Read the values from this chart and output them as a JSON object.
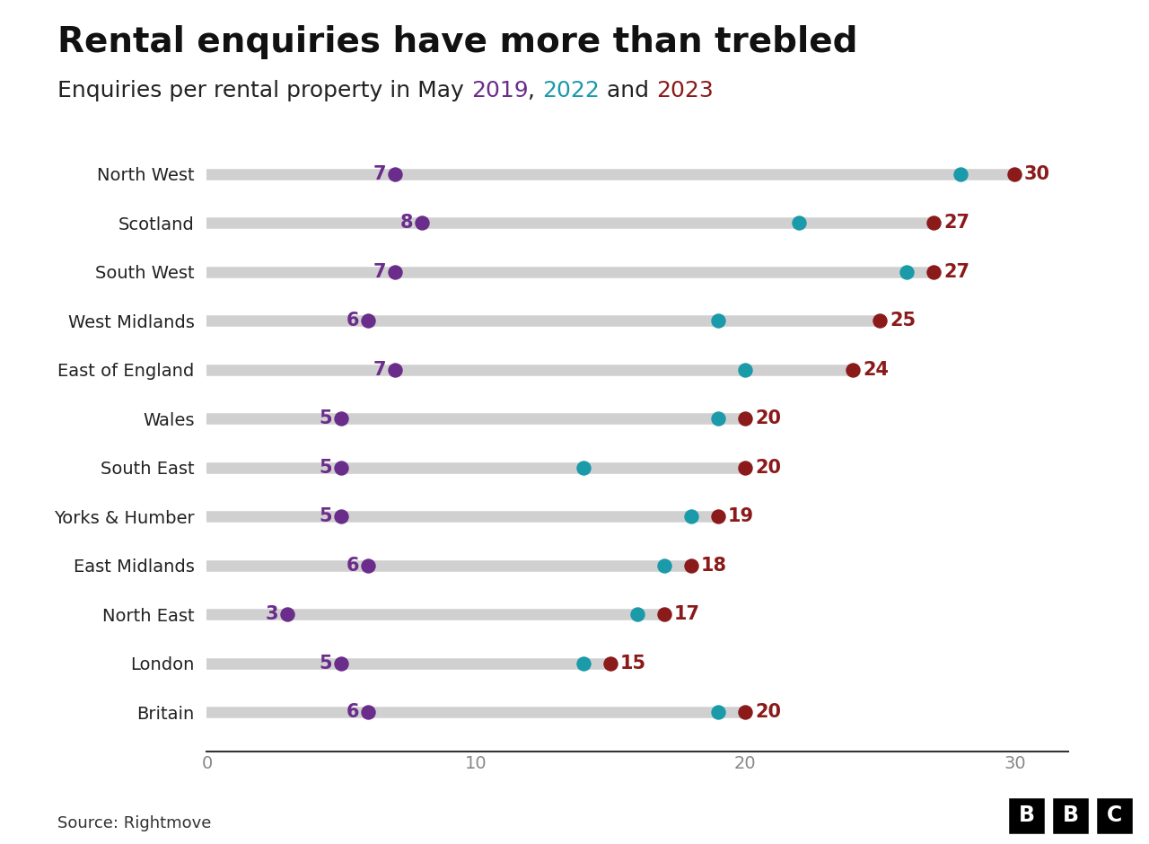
{
  "title": "Rental enquiries have more than trebled",
  "subtitle_parts": [
    {
      "text": "Enquiries per rental property in May ",
      "color": "#222222"
    },
    {
      "text": "2019",
      "color": "#6B2D8B"
    },
    {
      "text": ", ",
      "color": "#222222"
    },
    {
      "text": "2022",
      "color": "#1B9AAA"
    },
    {
      "text": " and ",
      "color": "#222222"
    },
    {
      "text": "2023",
      "color": "#8B1A1A"
    }
  ],
  "regions": [
    "North West",
    "Scotland",
    "South West",
    "West Midlands",
    "East of England",
    "Wales",
    "South East",
    "Yorks & Humber",
    "East Midlands",
    "North East",
    "London",
    "Britain"
  ],
  "values_2019": [
    7,
    8,
    7,
    6,
    7,
    5,
    5,
    5,
    6,
    3,
    5,
    6
  ],
  "values_2022": [
    28,
    22,
    26,
    19,
    20,
    19,
    14,
    18,
    17,
    16,
    14,
    19
  ],
  "values_2023": [
    30,
    27,
    27,
    25,
    24,
    20,
    20,
    19,
    18,
    17,
    15,
    20
  ],
  "color_2019": "#6B2D8B",
  "color_2022": "#1B9AAA",
  "color_2023": "#8B1A1A",
  "color_line": "#D0D0D0",
  "xlim": [
    0,
    32
  ],
  "xticks": [
    0,
    10,
    20,
    30
  ],
  "source": "Source: Rightmove",
  "background_color": "#FFFFFF"
}
